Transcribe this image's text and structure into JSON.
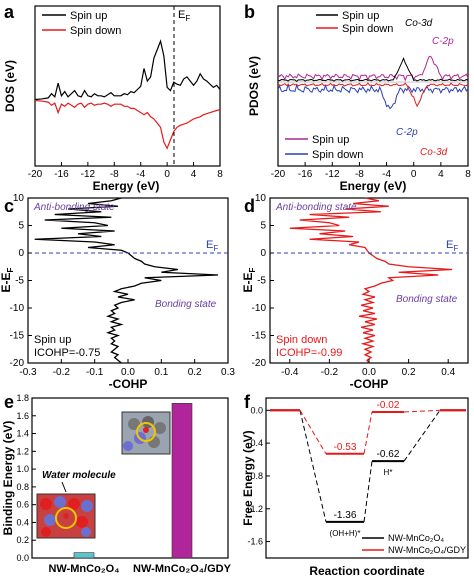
{
  "panels": {
    "a": {
      "letter": "a"
    },
    "b": {
      "letter": "b"
    },
    "c": {
      "letter": "c"
    },
    "d": {
      "letter": "d"
    },
    "e": {
      "letter": "e"
    },
    "f": {
      "letter": "f"
    }
  },
  "chart_data": [
    {
      "panel": "a",
      "type": "line",
      "xlabel": "Energy (eV)",
      "ylabel": "DOS (eV)",
      "xlim": [
        -20,
        8
      ],
      "xticks": [
        "-20",
        "-16",
        "-12",
        "-8",
        "-4",
        "0",
        "4",
        "8"
      ],
      "fermi_label": "E",
      "fermi_sub": "F",
      "series": [
        {
          "name": "Spin up",
          "color": "#000000",
          "x": [
            -20,
            -19,
            -18,
            -17.5,
            -17,
            -16.5,
            -16,
            -15.5,
            -15,
            -14.5,
            -14,
            -13.5,
            -13,
            -12.5,
            -12,
            -11.5,
            -11,
            -10.5,
            -10,
            -9.5,
            -9,
            -8.5,
            -8,
            -7.5,
            -7,
            -6.5,
            -6,
            -5.5,
            -5,
            -4.5,
            -4,
            -3.5,
            -3,
            -2.5,
            -2,
            -1.5,
            -1,
            -0.5,
            0,
            0.5,
            1,
            1.5,
            2,
            2.5,
            3,
            3.5,
            4,
            4.5,
            5,
            5.5,
            6,
            6.5,
            7,
            7.5,
            8
          ],
          "y": [
            0.5,
            1,
            2,
            6,
            3,
            16,
            4,
            8,
            3,
            6,
            9,
            4,
            3,
            9,
            4,
            3,
            6,
            4,
            4,
            3,
            5,
            7,
            4,
            4,
            4,
            6,
            5,
            8,
            7,
            10,
            13,
            30,
            18,
            22,
            40,
            48,
            56,
            42,
            12,
            9,
            17,
            15,
            14,
            20,
            22,
            18,
            14,
            18,
            25,
            20,
            18,
            15,
            12,
            14,
            10
          ]
        },
        {
          "name": "Spin down",
          "color": "#e8191a",
          "x": [
            -20,
            -19,
            -18,
            -17.5,
            -17,
            -16.5,
            -16,
            -15.5,
            -15,
            -14.5,
            -14,
            -13.5,
            -13,
            -12.5,
            -12,
            -11.5,
            -11,
            -10.5,
            -10,
            -9.5,
            -9,
            -8.5,
            -8,
            -7.5,
            -7,
            -6.5,
            -6,
            -5.5,
            -5,
            -4.5,
            -4,
            -3.5,
            -3,
            -2.5,
            -2,
            -1.5,
            -1,
            -0.5,
            0,
            0.5,
            1,
            1.5,
            2,
            2.5,
            3,
            3.5,
            4,
            4.5,
            5,
            5.5,
            6,
            6.5,
            7,
            7.5,
            8
          ],
          "y": [
            -0.5,
            -1,
            -2,
            -5,
            -3,
            -12,
            -4,
            -6,
            -3,
            -5,
            -7,
            -4,
            -3,
            -7,
            -4,
            -3,
            -5,
            -4,
            -4,
            -3,
            -4,
            -6,
            -4,
            -4,
            -4,
            -6,
            -6,
            -8,
            -8,
            -10,
            -12,
            -14,
            -12,
            -16,
            -18,
            -22,
            -26,
            -40,
            -46,
            -38,
            -30,
            -26,
            -24,
            -23,
            -22,
            -20,
            -18,
            -17,
            -16,
            -14,
            -13,
            -12,
            -11,
            -10,
            -9
          ]
        }
      ]
    },
    {
      "panel": "b",
      "type": "line",
      "xlabel": "Energy (eV)",
      "ylabel": "PDOS (eV)",
      "xlim": [
        -20,
        8
      ],
      "xticks": [
        "-20",
        "-16",
        "-12",
        "-8",
        "-4",
        "0",
        "4",
        "8"
      ],
      "series": [
        {
          "name": "Spin up",
          "color": "#000000",
          "y_sign": 1
        },
        {
          "name": "Spin down",
          "color": "#2a3fb8",
          "y_sign": -1
        }
      ],
      "annotations": [
        "Co-3d",
        "C-2p",
        "C-2p",
        "Co-3d"
      ]
    },
    {
      "panel": "c",
      "type": "line",
      "xlabel": "-COHP",
      "ylabel": "E-E",
      "ylabel_sub": "F",
      "xlim": [
        -0.3,
        0.3
      ],
      "ylim": [
        -20,
        10
      ],
      "xticks": [
        "-0.3",
        "-0.2",
        "-0.1",
        "0.0",
        "0.1",
        "0.2",
        "0.3"
      ],
      "yticks": [
        "10",
        "5",
        "0",
        "-5",
        "-10",
        "-15",
        "-20"
      ],
      "fermi_label": "E",
      "fermi_sub": "F",
      "annotations": [
        "Anti-bonding state",
        "Bonding state"
      ],
      "legend_text": [
        "Spin up",
        "ICOHP=-0.75"
      ],
      "series": [
        {
          "name": "Spin up",
          "color": "#000000",
          "e": [
            10,
            9.5,
            9,
            8.5,
            8,
            7.5,
            7,
            6.5,
            6,
            5.5,
            5,
            4.5,
            4,
            3.5,
            3,
            2.5,
            2,
            1.5,
            1,
            0.5,
            0,
            -0.5,
            -1,
            -1.5,
            -2,
            -2.5,
            -3,
            -3.5,
            -4,
            -4.5,
            -5,
            -5.5,
            -6,
            -6.5,
            -7,
            -7.5,
            -8,
            -8.5,
            -9,
            -9.5,
            -10,
            -10.5,
            -11,
            -11.5,
            -12,
            -12.5,
            -13,
            -13.5,
            -14,
            -14.5,
            -15,
            -15.5,
            -16,
            -16.5,
            -17,
            -17.5,
            -18,
            -18.5,
            -19,
            -19.5,
            -20
          ],
          "cohp": [
            -0.02,
            -0.05,
            -0.12,
            -0.03,
            -0.18,
            -0.08,
            -0.22,
            -0.05,
            -0.25,
            -0.1,
            -0.06,
            -0.2,
            -0.04,
            -0.15,
            -0.08,
            -0.28,
            -0.1,
            -0.04,
            -0.12,
            -0.02,
            0.0,
            0.01,
            0.02,
            0.04,
            0.05,
            0.08,
            0.15,
            0.1,
            0.27,
            0.05,
            0.1,
            0.04,
            0.02,
            -0.02,
            -0.04,
            0.0,
            -0.03,
            0.02,
            -0.02,
            -0.04,
            -0.03,
            -0.05,
            -0.04,
            -0.06,
            -0.03,
            -0.05,
            -0.02,
            -0.05,
            -0.04,
            -0.06,
            -0.03,
            -0.05,
            -0.04,
            -0.05,
            -0.03,
            -0.04,
            -0.05,
            -0.03,
            -0.04,
            -0.03,
            -0.02
          ]
        }
      ]
    },
    {
      "panel": "d",
      "type": "line",
      "xlabel": "-COHP",
      "ylabel": "E-E",
      "ylabel_sub": "F",
      "xlim": [
        -0.5,
        0.5
      ],
      "ylim": [
        -20,
        10
      ],
      "xticks": [
        "-0.4",
        "-0.2",
        "0.0",
        "0.2",
        "0.4"
      ],
      "yticks": [
        "10",
        "5",
        "0",
        "-5",
        "-10",
        "-15",
        "-20"
      ],
      "fermi_label": "E",
      "fermi_sub": "F",
      "annotations": [
        "Anti-bonding state",
        "Bonding state"
      ],
      "legend_text": [
        "Spin down",
        "ICOHP=-0.99"
      ],
      "series": [
        {
          "name": "Spin down",
          "color": "#e8191a",
          "e": [
            10,
            9.5,
            9,
            8.5,
            8,
            7.5,
            7,
            6.5,
            6,
            5.5,
            5,
            4.5,
            4,
            3.5,
            3,
            2.5,
            2,
            1.5,
            1,
            0.5,
            0,
            -0.5,
            -1,
            -1.5,
            -2,
            -2.5,
            -3,
            -3.5,
            -4,
            -4.5,
            -5,
            -5.5,
            -6,
            -6.5,
            -7,
            -7.5,
            -8,
            -8.5,
            -9,
            -9.5,
            -10,
            -10.5,
            -11,
            -11.5,
            -12,
            -12.5,
            -13,
            -13.5,
            -14,
            -14.5,
            -15,
            -15.5,
            -16,
            -16.5,
            -17,
            -17.5,
            -18,
            -18.5,
            -19,
            -19.5,
            -20
          ],
          "cohp": [
            -0.02,
            0.05,
            -0.08,
            0.1,
            -0.12,
            0.06,
            -0.3,
            -0.1,
            -0.35,
            -0.2,
            -0.15,
            -0.4,
            -0.12,
            -0.25,
            -0.08,
            -0.3,
            -0.05,
            -0.1,
            -0.02,
            -0.01,
            0.0,
            0.02,
            0.04,
            0.08,
            0.1,
            0.2,
            0.42,
            0.15,
            0.35,
            0.1,
            0.12,
            0.06,
            0.03,
            -0.02,
            0.0,
            -0.03,
            0.03,
            -0.02,
            0.02,
            -0.04,
            0.02,
            -0.03,
            0.03,
            -0.05,
            0.04,
            -0.02,
            0.03,
            -0.04,
            0.02,
            -0.03,
            0.03,
            -0.02,
            0.02,
            -0.03,
            0.02,
            -0.02,
            0.01,
            -0.02,
            0.01,
            -0.01,
            0.0
          ]
        }
      ]
    },
    {
      "panel": "e",
      "type": "bar",
      "ylabel": "Binding Energy (eV)",
      "ylim": [
        0,
        1.8
      ],
      "yticks": [
        "0.0",
        "0.2",
        "0.4",
        "0.6",
        "0.8",
        "1.0",
        "1.2",
        "1.4",
        "1.6",
        "1.8"
      ],
      "categories": [
        "NW-MnCo₂O₄",
        "NW-MnCo₂O₄/GDY"
      ],
      "values": [
        0.06,
        1.74
      ],
      "colors": [
        "#5bc5cc",
        "#b0259a"
      ],
      "annotation": "Water molecule"
    },
    {
      "panel": "f",
      "type": "line",
      "xlabel": "Reaction coordinate",
      "ylabel": "Free Energy (eV)",
      "ylim": [
        -1.8,
        0.15
      ],
      "yticks": [
        "0.0",
        "-0.4",
        "-0.8",
        "-1.2",
        "-1.6"
      ],
      "step_labels": [
        "(OH+H)*",
        "H*"
      ],
      "series": [
        {
          "name": "NW-MnCo₂O₄",
          "color": "#000000",
          "values": [
            0.0,
            -1.36,
            -0.62,
            0.0
          ],
          "value_labels": [
            "",
            "-1.36",
            "-0.62",
            ""
          ]
        },
        {
          "name": "NW-MnCo₂O₄/GDY",
          "color": "#e8191a",
          "values": [
            0.0,
            -0.53,
            -0.02,
            0.0
          ],
          "value_labels": [
            "",
            "-0.53",
            "-0.02",
            ""
          ]
        }
      ]
    }
  ]
}
